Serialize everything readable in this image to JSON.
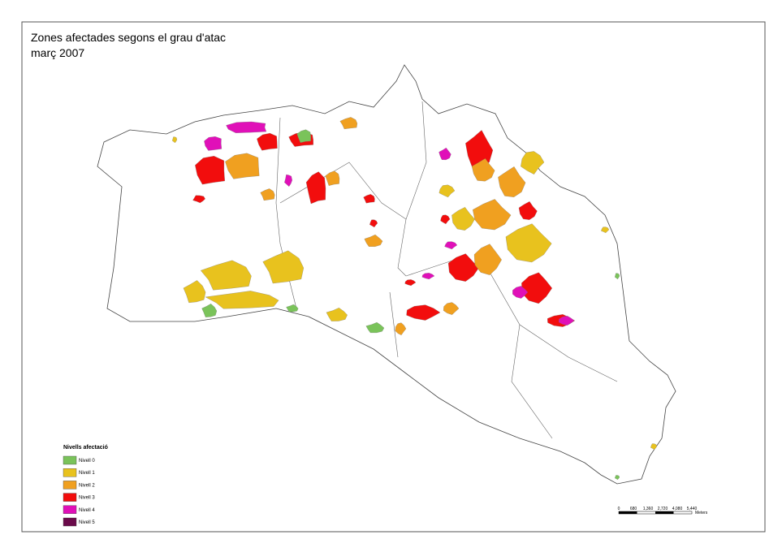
{
  "map": {
    "title_lines": [
      "Zones afectades segons el grau d'atac",
      "març 2007"
    ],
    "legend": {
      "title": "Nivells afectació",
      "items": [
        {
          "label": "Nivell 0",
          "color": "#7ac35a"
        },
        {
          "label": "Nivell 1",
          "color": "#e8c21e"
        },
        {
          "label": "Nivell 2",
          "color": "#f0a020"
        },
        {
          "label": "Nivell 3",
          "color": "#f20d0d"
        },
        {
          "label": "Nivell 4",
          "color": "#e010b8"
        },
        {
          "label": "Nivell 5",
          "color": "#6a0a4a"
        }
      ]
    },
    "scale_bar": {
      "labels": [
        "0",
        "680",
        "1,360",
        "2,720",
        "4,080",
        "5,440"
      ],
      "unit": "Meters"
    }
  }
}
